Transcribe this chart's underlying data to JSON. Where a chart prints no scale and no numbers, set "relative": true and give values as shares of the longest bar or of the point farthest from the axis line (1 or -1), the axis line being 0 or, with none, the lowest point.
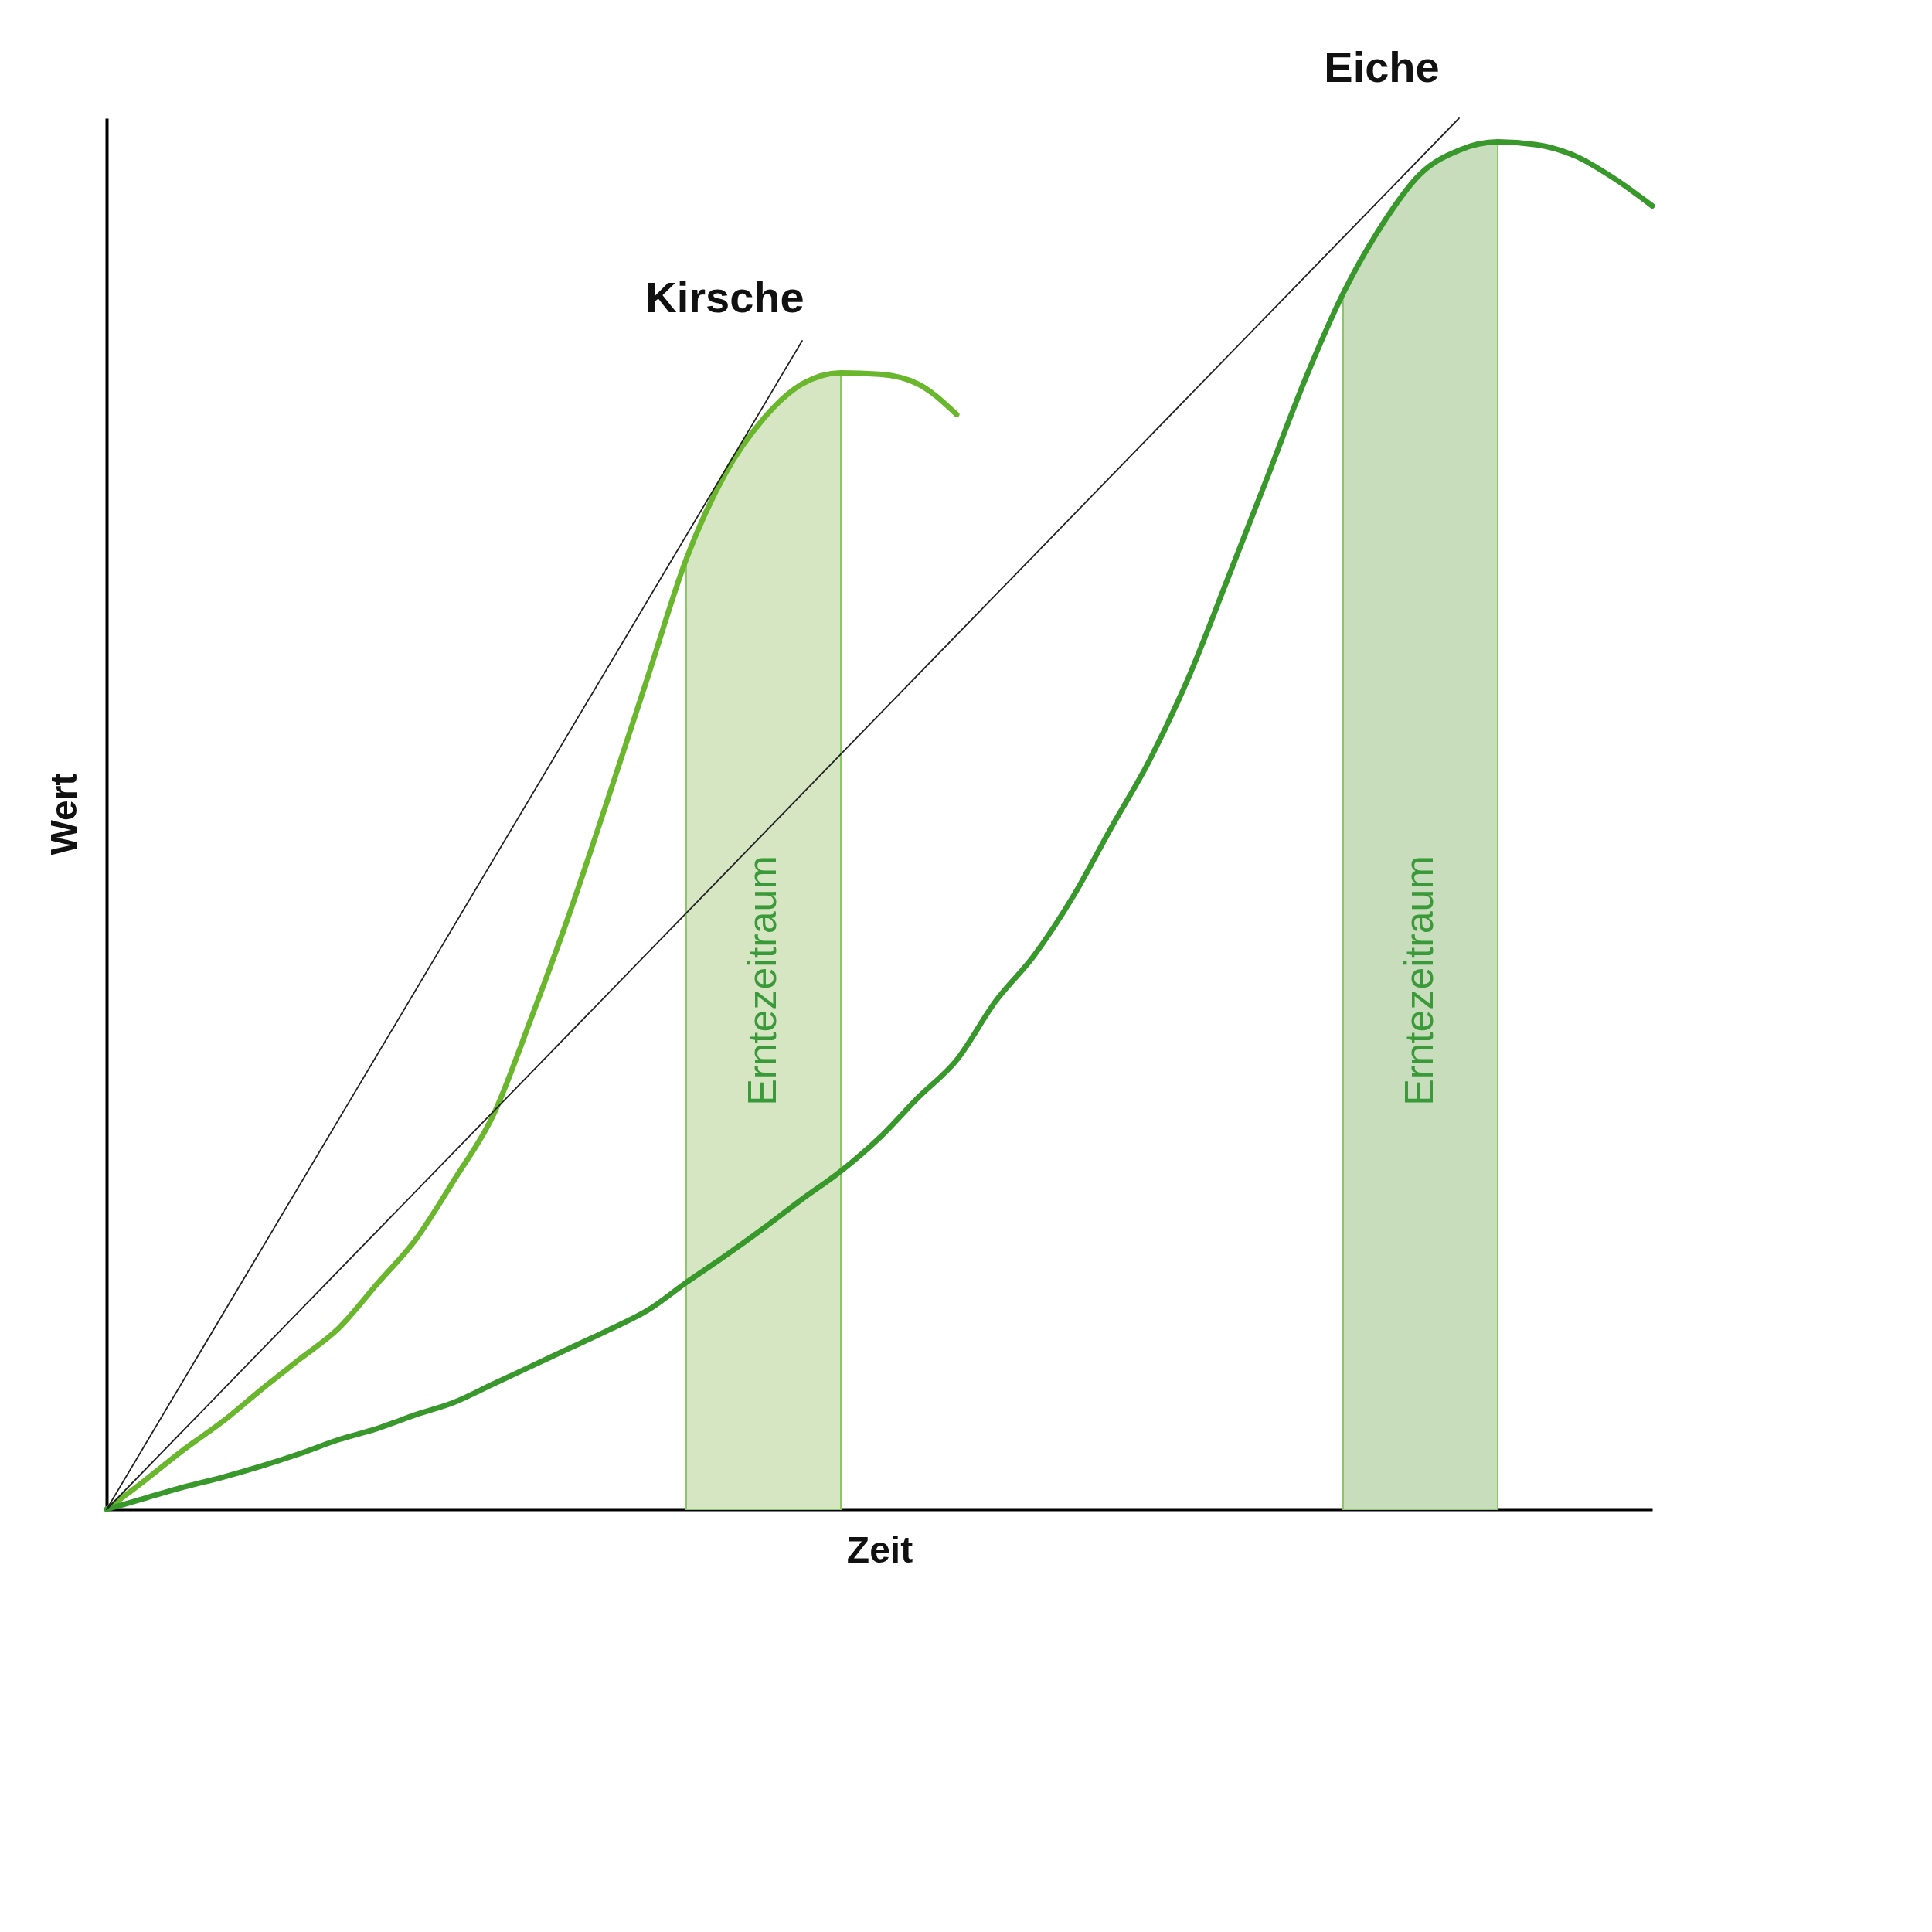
{
  "chart_data": {
    "type": "line",
    "relative": true,
    "xlabel": "Zeit",
    "ylabel": "Wert",
    "categories": [
      null,
      null,
      null,
      null,
      null,
      null,
      null,
      null,
      null,
      null,
      null,
      null,
      null,
      null,
      null,
      null,
      null,
      null,
      null,
      null,
      null,
      null,
      null,
      null,
      null,
      null,
      null,
      null,
      null,
      null,
      null,
      null,
      null,
      null,
      null,
      null,
      null,
      null,
      null,
      null,
      null
    ],
    "series": [
      {
        "type": "area",
        "color": "#d6e6c3",
        "values": [
          null,
          null,
          null,
          null,
          null,
          null,
          null,
          null,
          null,
          null,
          null,
          null,
          null,
          null,
          null,
          0.683,
          0.744,
          0.784,
          0.809,
          0.817,
          null,
          null,
          null,
          null,
          null,
          null,
          null,
          null,
          null,
          null,
          null,
          null,
          null,
          null,
          null,
          null,
          null,
          null,
          null,
          null,
          null
        ]
      },
      {
        "type": "area",
        "color": "#c8ddbb",
        "values": [
          null,
          null,
          null,
          null,
          null,
          null,
          null,
          null,
          null,
          null,
          null,
          null,
          null,
          null,
          null,
          null,
          null,
          null,
          null,
          null,
          null,
          null,
          null,
          null,
          null,
          null,
          null,
          null,
          null,
          null,
          null,
          null,
          0.874,
          0.923,
          0.96,
          0.977,
          0.983,
          null,
          null,
          null,
          null
        ]
      },
      {
        "name": "Kirsche",
        "color": "#6ab72e",
        "values": [
          0,
          0.021,
          0.043,
          0.063,
          0.086,
          0.108,
          0.13,
          0.162,
          0.194,
          0.237,
          0.283,
          0.354,
          0.43,
          0.513,
          0.598,
          0.683,
          0.744,
          0.784,
          0.809,
          0.817,
          0.816,
          0.809,
          0.787,
          null,
          null,
          null,
          null,
          null,
          null,
          null,
          null,
          null,
          null,
          null,
          null,
          null,
          null,
          null,
          null,
          null,
          null
        ]
      },
      {
        "name": "Eiche",
        "color": "#38982c",
        "values": [
          0,
          0.008,
          0.016,
          0.023,
          0.031,
          0.04,
          0.05,
          0.058,
          0.068,
          0.077,
          0.09,
          0.103,
          0.116,
          0.129,
          0.143,
          0.163,
          0.182,
          0.202,
          0.223,
          0.243,
          0.267,
          0.296,
          0.323,
          0.365,
          0.398,
          0.44,
          0.49,
          0.539,
          0.598,
          0.668,
          0.739,
          0.811,
          0.874,
          0.923,
          0.96,
          0.977,
          0.983,
          0.981,
          0.973,
          0.957,
          0.937
        ]
      },
      {
        "color": "#222222",
        "values": [
          0,
          null,
          null,
          null,
          null,
          null,
          null,
          null,
          null,
          null,
          null,
          null,
          null,
          null,
          null,
          null,
          null,
          null,
          0.84,
          null,
          null,
          null,
          null,
          null,
          null,
          null,
          null,
          null,
          null,
          null,
          null,
          null,
          null,
          null,
          null,
          null,
          null,
          null,
          null,
          null,
          null
        ]
      },
      {
        "color": "#222222",
        "values": [
          0,
          null,
          null,
          null,
          null,
          null,
          null,
          null,
          null,
          null,
          null,
          null,
          null,
          null,
          null,
          null,
          null,
          null,
          null,
          null,
          null,
          null,
          null,
          null,
          null,
          null,
          null,
          null,
          null,
          null,
          null,
          null,
          null,
          null,
          null,
          1.0,
          null,
          null,
          null,
          null,
          null
        ]
      }
    ],
    "annotations": [
      "Erntezeitraum",
      "Erntezeitraum"
    ]
  }
}
